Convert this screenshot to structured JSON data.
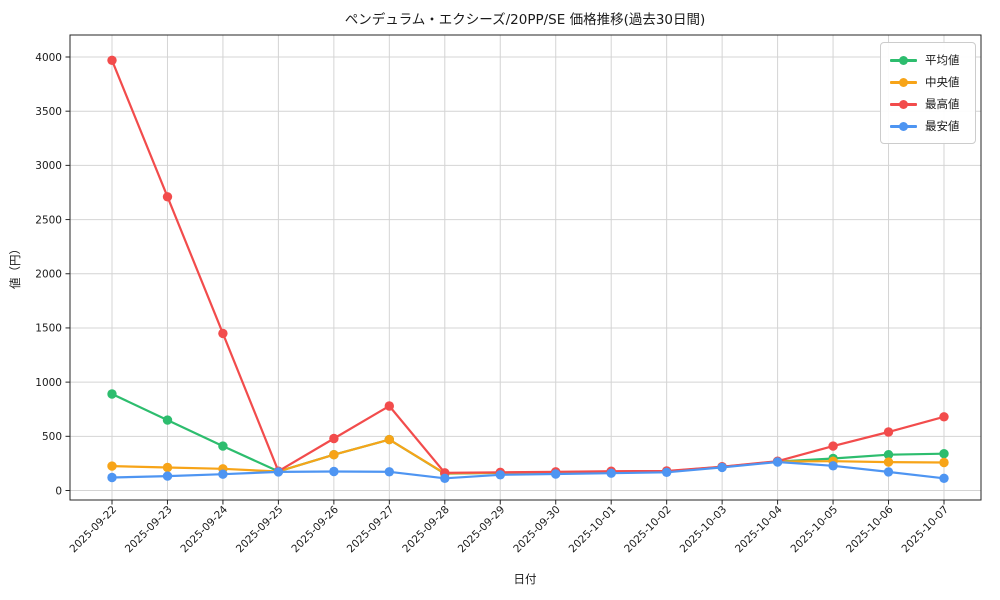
{
  "chart_data": {
    "type": "line",
    "title": "ペンデュラム・エクシーズ/20PP/SE 価格推移(過去30日間)",
    "xlabel": "日付",
    "ylabel": "値（円）",
    "x": [
      "2025-09-22",
      "2025-09-23",
      "2025-09-24",
      "2025-09-25",
      "2025-09-26",
      "2025-09-27",
      "2025-09-28",
      "2025-09-29",
      "2025-09-30",
      "2025-10-01",
      "2025-10-02",
      "2025-10-03",
      "2025-10-04",
      "2025-10-05",
      "2025-10-06",
      "2025-10-07"
    ],
    "series": [
      {
        "name": "平均値",
        "color": "#2dbd6e",
        "values": [
          890,
          650,
          410,
          176,
          330,
          470,
          155,
          162,
          167,
          172,
          176,
          217,
          267,
          295,
          330,
          340
        ]
      },
      {
        "name": "中央値",
        "color": "#f7a418",
        "values": [
          225,
          212,
          200,
          175,
          330,
          470,
          158,
          164,
          169,
          174,
          177,
          218,
          268,
          270,
          262,
          258
        ]
      },
      {
        "name": "最高値",
        "color": "#f24c4c",
        "values": [
          3970,
          2710,
          1450,
          178,
          480,
          780,
          163,
          168,
          173,
          178,
          180,
          220,
          270,
          410,
          540,
          680
        ]
      },
      {
        "name": "最安値",
        "color": "#4e95f2",
        "values": [
          120,
          133,
          150,
          172,
          175,
          173,
          113,
          145,
          152,
          160,
          168,
          213,
          263,
          228,
          172,
          113
        ]
      }
    ],
    "yticks": [
      0,
      500,
      1000,
      1500,
      2000,
      2500,
      3000,
      3500,
      4000
    ],
    "ylim": [
      -90,
      4200
    ],
    "grid": true,
    "legend_position": "upper right"
  },
  "colors": {
    "grid": "#d4d4d4",
    "spine": "#262626",
    "text": "#1a1a1a"
  }
}
